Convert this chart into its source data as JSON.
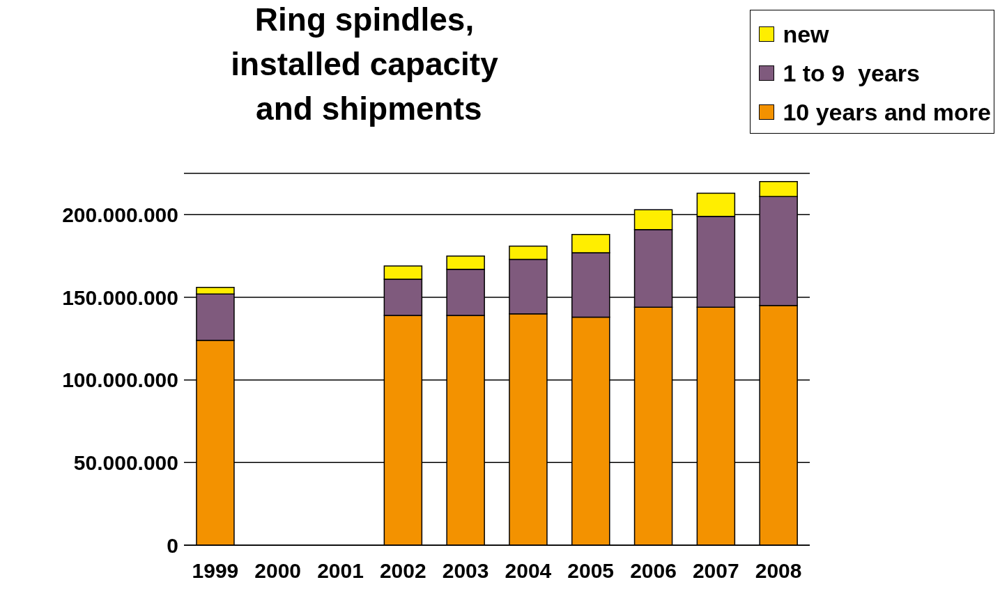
{
  "chart_data": {
    "type": "bar",
    "title": "Ring spindles,\ninstalled capacity\n and shipments",
    "categories": [
      "1999",
      "2000",
      "2001",
      "2002",
      "2003",
      "2004",
      "2005",
      "2006",
      "2007",
      "2008"
    ],
    "stacked": true,
    "series": [
      {
        "name": "10 years and more",
        "color": "#f39200",
        "values": [
          124000000,
          null,
          null,
          139000000,
          139000000,
          140000000,
          138000000,
          144000000,
          144000000,
          145000000
        ]
      },
      {
        "name": "1 to 9  years",
        "color": "#7f5a7d",
        "values": [
          28000000,
          null,
          null,
          22000000,
          28000000,
          33000000,
          39000000,
          47000000,
          55000000,
          66000000
        ]
      },
      {
        "name": "new",
        "color": "#ffee00",
        "values": [
          4000000,
          null,
          null,
          8000000,
          8000000,
          8000000,
          11000000,
          12000000,
          14000000,
          9000000
        ]
      }
    ],
    "ylim": [
      0,
      225000000
    ],
    "yticks": [
      {
        "value": 0,
        "label": "0"
      },
      {
        "value": 50000000,
        "label": "50.000.000"
      },
      {
        "value": 100000000,
        "label": "100.000.000"
      },
      {
        "value": 150000000,
        "label": "150.000.000"
      },
      {
        "value": 200000000,
        "label": "200.000.000"
      }
    ],
    "grid": "y",
    "legend": "top right"
  }
}
